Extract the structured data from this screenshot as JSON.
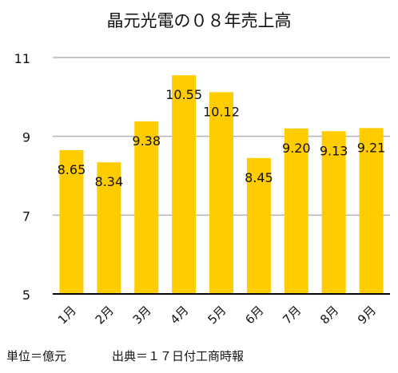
{
  "chart_data": {
    "type": "bar",
    "title": "晶元光電の０８年売上高",
    "categories": [
      "1月",
      "2月",
      "3月",
      "4月",
      "5月",
      "6月",
      "7月",
      "8月",
      "9月"
    ],
    "values": [
      8.65,
      8.34,
      9.38,
      10.55,
      10.12,
      8.45,
      9.2,
      9.13,
      9.21
    ],
    "data_labels": [
      "8.65",
      "8.34",
      "9.38",
      "10.55",
      "10.12",
      "8.45",
      "9.20",
      "9.13",
      "9.21"
    ],
    "y_ticks": [
      "5",
      "7",
      "9",
      "11"
    ],
    "ylim": [
      5,
      11
    ],
    "grid": true,
    "bar_color": "#FFCC00",
    "grid_color": "#b3b3b3",
    "xlabel": "",
    "ylabel": ""
  },
  "notes": {
    "unit": "単位＝億元",
    "source": "出典＝１７日付工商時報"
  }
}
